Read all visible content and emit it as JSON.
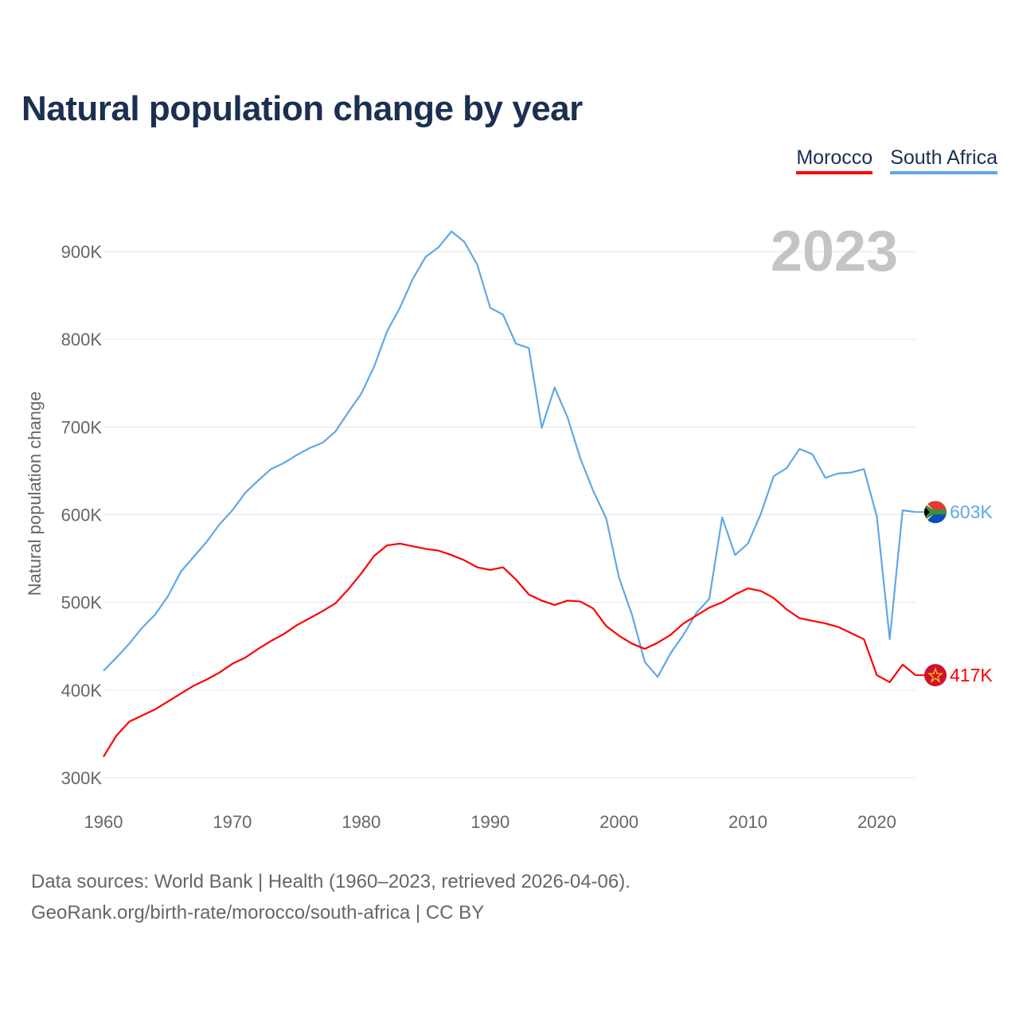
{
  "title": "Natural population change by year",
  "footer": {
    "line1": "Data sources: World Bank | Health (1960–2023, retrieved 2026-04-06).",
    "line2": "GeoRank.org/birth-rate/morocco/south-africa | CC BY"
  },
  "chart_data": {
    "type": "line",
    "title": "Natural population change by year",
    "xlabel": "",
    "ylabel": "Natural population change",
    "xlim": [
      1960,
      2023
    ],
    "ylim": [
      300000,
      900000
    ],
    "x_ticks": [
      "1960",
      "1970",
      "1980",
      "1990",
      "2000",
      "2010",
      "2020"
    ],
    "y_ticks": [
      "300K",
      "400K",
      "500K",
      "600K",
      "700K",
      "800K",
      "900K"
    ],
    "year_label": "2023",
    "grid": true,
    "legend_position": "top-right",
    "x": [
      1960,
      1961,
      1962,
      1963,
      1964,
      1965,
      1966,
      1967,
      1968,
      1969,
      1970,
      1971,
      1972,
      1973,
      1974,
      1975,
      1976,
      1977,
      1978,
      1979,
      1980,
      1981,
      1982,
      1983,
      1984,
      1985,
      1986,
      1987,
      1988,
      1989,
      1990,
      1991,
      1992,
      1993,
      1994,
      1995,
      1996,
      1997,
      1998,
      1999,
      2000,
      2001,
      2002,
      2003,
      2004,
      2005,
      2006,
      2007,
      2008,
      2009,
      2010,
      2011,
      2012,
      2013,
      2014,
      2015,
      2016,
      2017,
      2018,
      2019,
      2020,
      2021,
      2022,
      2023
    ],
    "series": [
      {
        "name": "Morocco",
        "color": "#ff0000",
        "end_label": "417K",
        "flag": "morocco-flag",
        "values": [
          324,
          348,
          364,
          371,
          378,
          387,
          396,
          405,
          412,
          420,
          430,
          437,
          447,
          456,
          464,
          474,
          482,
          490,
          499,
          515,
          533,
          553,
          565,
          567,
          564,
          561,
          559,
          554,
          548,
          540,
          537,
          540,
          526,
          509,
          502,
          497,
          502,
          501,
          493,
          473,
          462,
          453,
          447,
          454,
          463,
          476,
          485,
          494,
          500,
          509,
          516,
          513,
          505,
          492,
          482,
          479,
          476,
          472,
          465,
          458,
          417,
          409,
          429,
          417
        ]
      },
      {
        "name": "South Africa",
        "color": "#5fa8e8",
        "end_label": "603K",
        "flag": "south-africa-flag",
        "values": [
          422,
          437,
          453,
          471,
          486,
          507,
          535,
          552,
          569,
          589,
          605,
          625,
          639,
          652,
          659,
          668,
          676,
          682,
          695,
          717,
          738,
          769,
          809,
          836,
          869,
          894,
          905,
          923,
          911,
          885,
          836,
          828,
          795,
          790,
          699,
          745,
          711,
          664,
          627,
          596,
          528,
          486,
          432,
          415,
          442,
          463,
          488,
          504,
          597,
          554,
          567,
          601,
          644,
          653,
          675,
          669,
          642,
          647,
          648,
          652,
          598,
          458,
          605,
          603
        ]
      }
    ],
    "value_unit": "thousands"
  }
}
